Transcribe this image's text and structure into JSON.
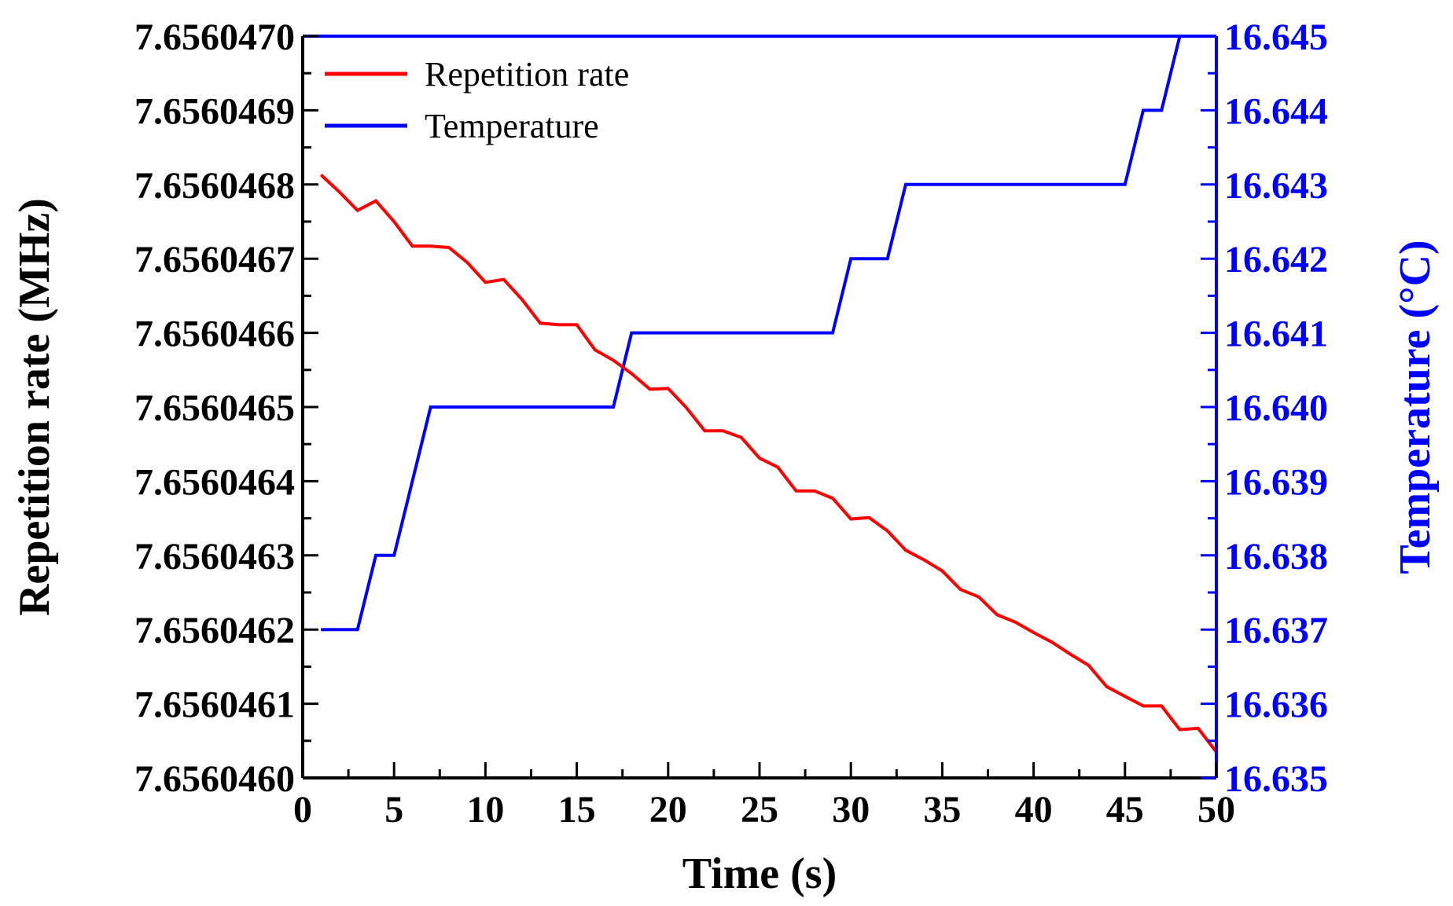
{
  "chart_data": {
    "type": "line",
    "title": "",
    "xlabel": "Time (s)",
    "ylabel_left": "Repetition rate (MHz)",
    "ylabel_right": "Temperature (°C)",
    "xlim": [
      0,
      50
    ],
    "ylim_left": [
      7.656046,
      7.656047
    ],
    "ylim_right": [
      16.635,
      16.645
    ],
    "x_ticks": [
      "0",
      "5",
      "10",
      "15",
      "20",
      "25",
      "30",
      "35",
      "40",
      "45",
      "50"
    ],
    "y_left_ticks": [
      "7.6560460",
      "7.6560461",
      "7.6560462",
      "7.6560463",
      "7.6560464",
      "7.6560465",
      "7.6560466",
      "7.6560467",
      "7.6560468",
      "7.6560469",
      "7.6560470"
    ],
    "y_right_ticks": [
      "16.635",
      "16.636",
      "16.637",
      "16.638",
      "16.639",
      "16.640",
      "16.641",
      "16.642",
      "16.643",
      "16.644",
      "16.645"
    ],
    "grid": false,
    "legend_position": "top-left",
    "colors": {
      "repetition": "#ff0000",
      "temperature": "#0000ff",
      "axis_left": "#000000",
      "axis_right": "#0000ff"
    },
    "series": [
      {
        "name": "Repetition rate",
        "axis": "left",
        "unit_note": "value offset from 7.656046 MHz, in units of 1e-7 MHz",
        "x": [
          1,
          2,
          3,
          4,
          5,
          6,
          7,
          8,
          9,
          10,
          11,
          12,
          13,
          14,
          15,
          16,
          17,
          18,
          19,
          20,
          21,
          22,
          23,
          24,
          25,
          26,
          27,
          28,
          29,
          30,
          31,
          32,
          33,
          34,
          35,
          36,
          37,
          38,
          39,
          40,
          41,
          42,
          43,
          44,
          45,
          46,
          47,
          48,
          49,
          50
        ],
        "values": [
          8.13,
          7.9,
          7.65,
          7.78,
          7.5,
          7.17,
          7.17,
          7.15,
          6.95,
          6.68,
          6.72,
          6.45,
          6.13,
          6.11,
          6.11,
          5.77,
          5.63,
          5.45,
          5.24,
          5.25,
          4.99,
          4.68,
          4.68,
          4.59,
          4.31,
          4.19,
          3.87,
          3.87,
          3.77,
          3.49,
          3.51,
          3.33,
          3.07,
          2.94,
          2.79,
          2.54,
          2.44,
          2.2,
          2.1,
          1.96,
          1.83,
          1.67,
          1.52,
          1.23,
          1.1,
          0.97,
          0.97,
          0.65,
          0.67,
          0.35
        ]
      },
      {
        "name": "Temperature",
        "axis": "right",
        "x": [
          1,
          3,
          4,
          5,
          7,
          17,
          18,
          29,
          30,
          32,
          33,
          45,
          46,
          47,
          48,
          50
        ],
        "values": [
          16.637,
          16.637,
          16.638,
          16.638,
          16.64,
          16.64,
          16.641,
          16.641,
          16.642,
          16.642,
          16.643,
          16.643,
          16.644,
          16.644,
          16.645,
          16.645
        ]
      }
    ]
  }
}
